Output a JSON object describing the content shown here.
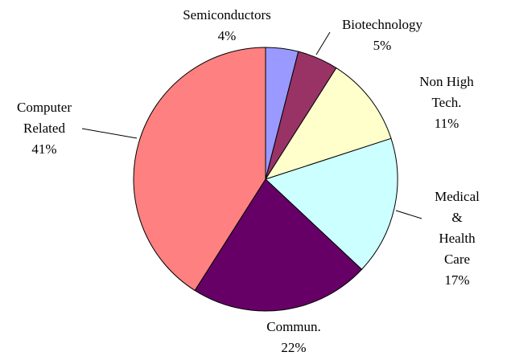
{
  "chart_data": {
    "type": "pie",
    "categories": [
      "Semiconductors",
      "Biotechnology",
      "Non High Tech.",
      "Medical &\nHealth Care",
      "Commun.",
      "Computer\nRelated"
    ],
    "values": [
      4,
      5,
      11,
      17,
      22,
      41
    ],
    "value_labels": [
      "4%",
      "5%",
      "11%",
      "17%",
      "22%",
      "41%"
    ],
    "colors": [
      "#9999ff",
      "#993366",
      "#ffffcc",
      "#ccffff",
      "#660066",
      "#ff8080"
    ]
  }
}
